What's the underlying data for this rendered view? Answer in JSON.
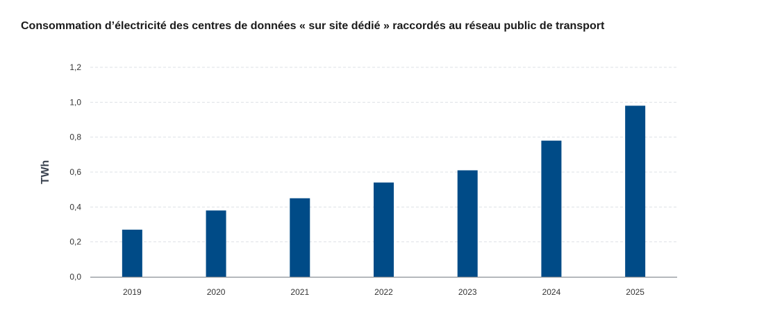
{
  "chart_data": {
    "type": "bar",
    "title": "Consommation d’électricité des centres de données « sur site dédié » raccordés au réseau public de transport",
    "xlabel": "",
    "ylabel": "TWh",
    "categories": [
      "2019",
      "2020",
      "2021",
      "2022",
      "2023",
      "2024",
      "2025"
    ],
    "values": [
      0.27,
      0.38,
      0.45,
      0.54,
      0.61,
      0.78,
      0.98
    ],
    "ylim": [
      0,
      1.2
    ],
    "yticks": [
      "0,0",
      "0,2",
      "0,4",
      "0,6",
      "0,8",
      "1,0",
      "1,2"
    ],
    "grid": true,
    "bar_color": "#004b87",
    "legend": "none"
  }
}
